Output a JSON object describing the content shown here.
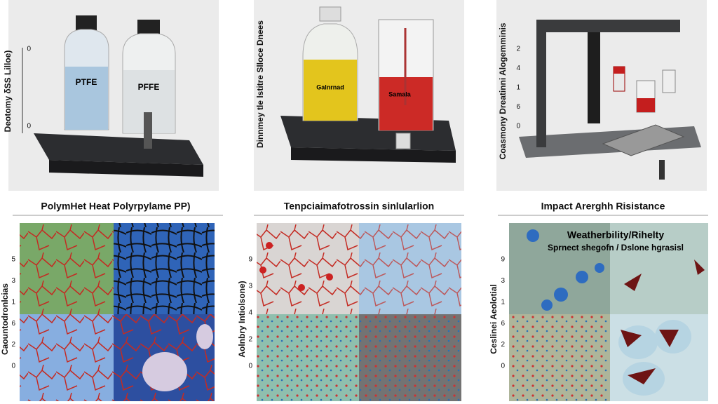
{
  "panels": [
    {
      "title": "PolymHet Heat Polyrpylame PP)",
      "photo_label": "Deotomy δSS Lilloe)",
      "bottle_labels": [
        "PTFE",
        "PFFE"
      ],
      "photo_ticks": [
        "0",
        "0"
      ],
      "micro_label": "Caountodronlcias",
      "micro_ticks": [
        "5",
        "3",
        "1",
        "6",
        "2",
        "0"
      ]
    },
    {
      "title": "Tenpciaimafotrossin sinlularlion",
      "photo_label": "Dinnmey tle lstitre Slloce Dnees",
      "bottle_labels": [
        "Galnrnad",
        "Samala"
      ],
      "photo_ticks": [],
      "micro_label": "Aolnbry Intiolsone)",
      "micro_ticks": [
        "9",
        "3",
        "4",
        "2",
        "0"
      ]
    },
    {
      "title": "Impact Arerghh Risistance",
      "photo_label": "Coasmony Dreatinni Alogemminis",
      "bottle_labels": [],
      "photo_ticks": [
        "2",
        "4",
        "1",
        "6",
        "0"
      ],
      "micro_label": "Ceslinei Aeolotial",
      "micro_ticks": [
        "9",
        "3",
        "1",
        "6",
        "2",
        "0"
      ]
    }
  ],
  "overlay": {
    "line1": "Weatherbility/Rihelty",
    "line2": "Sprnect shegofn / Dslone hgrasisl"
  }
}
